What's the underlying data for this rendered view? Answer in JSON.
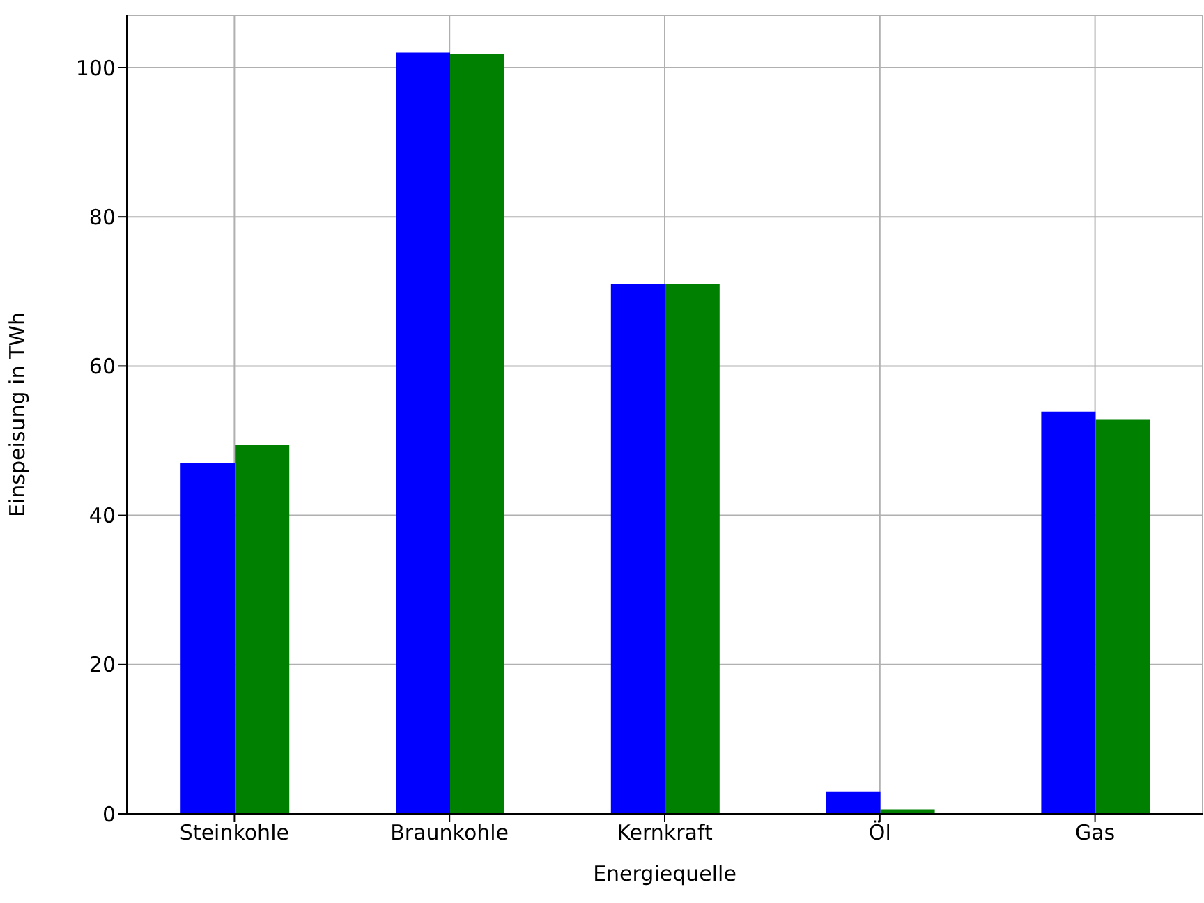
{
  "chart_data": {
    "type": "bar",
    "xlabel": "Energiequelle",
    "ylabel": "Einspeisung in TWh",
    "categories": [
      "Steinkohle",
      "Braunkohle",
      "Kernkraft",
      "Öl",
      "Gas"
    ],
    "series": [
      {
        "color": "#0000ff",
        "values": [
          47.0,
          102.0,
          71.0,
          3.0,
          53.9
        ]
      },
      {
        "color": "#008000",
        "values": [
          49.4,
          101.8,
          71.0,
          0.6,
          52.8
        ]
      }
    ],
    "ylim": [
      0,
      107
    ],
    "yticks": [
      0,
      20,
      40,
      60,
      80,
      100
    ],
    "grid": true
  }
}
